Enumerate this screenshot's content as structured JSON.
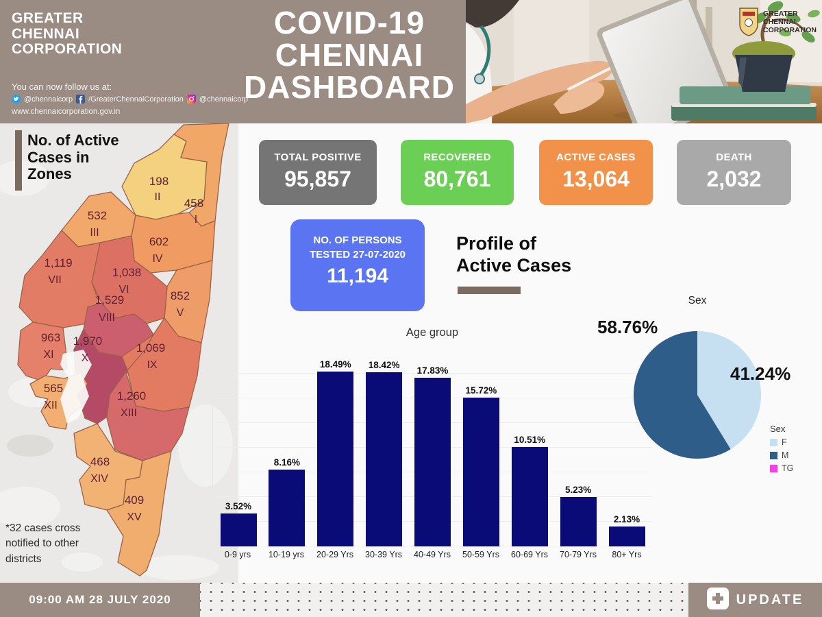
{
  "header": {
    "org_name": "GREATER\nCHENNAI\nCORPORATION",
    "follow_text": "You can now follow us at:",
    "social": {
      "twitter_handle": "@chennaicorp",
      "facebook_handle": "/GreaterChennaiCorporation",
      "instagram_handle": "@chennaicorp"
    },
    "website": "www.chennaicorporation.gov.in",
    "title": "COVID-19\nCHENNAI\nDASHBOARD",
    "logo_text": "GREATER\nCHENNAI\nCORPORATION"
  },
  "stats": [
    {
      "label": "TOTAL POSITIVE",
      "value": "95,857",
      "color": "#757575"
    },
    {
      "label": "RECOVERED",
      "value": "80,761",
      "color": "#6ccf55"
    },
    {
      "label": "ACTIVE CASES",
      "value": "13,064",
      "color": "#f1914a"
    },
    {
      "label": "DEATH",
      "value": "2,032",
      "color": "#a9a9a9"
    }
  ],
  "tested_card": {
    "label": "NO. OF PERSONS\nTESTED 27-07-2020",
    "value": "11,194",
    "color": "#5a74f2"
  },
  "profile_heading": "Profile of\nActive Cases",
  "map": {
    "title": "No. of Active\nCases in\nZones",
    "note": "*32 cases cross\nnotified to other\ndistricts",
    "zones": [
      {
        "roman": "II",
        "value": "198",
        "color": "#f3d17e"
      },
      {
        "roman": "I",
        "value": "458",
        "color": "#f1a768"
      },
      {
        "roman": "III",
        "value": "532",
        "color": "#f2a76b"
      },
      {
        "roman": "IV",
        "value": "602",
        "color": "#f09b62"
      },
      {
        "roman": "V",
        "value": "852",
        "color": "#ef9d68"
      },
      {
        "roman": "VI",
        "value": "1,038",
        "color": "#dc7163"
      },
      {
        "roman": "VII",
        "value": "1,119",
        "color": "#e27c64"
      },
      {
        "roman": "VIII",
        "value": "1,529",
        "color": "#cb5f6d"
      },
      {
        "roman": "IX",
        "value": "1,069",
        "color": "#e27b62"
      },
      {
        "roman": "X",
        "value": "1,970",
        "color": "#b54a67"
      },
      {
        "roman": "XI",
        "value": "963",
        "color": "#e5816a"
      },
      {
        "roman": "XII",
        "value": "565",
        "color": "#f3ae72"
      },
      {
        "roman": "XIII",
        "value": "1,260",
        "color": "#d66a6b"
      },
      {
        "roman": "XIV",
        "value": "468",
        "color": "#f2b274"
      },
      {
        "roman": "XV",
        "value": "409",
        "color": "#f0ad6d"
      }
    ]
  },
  "chart_data": [
    {
      "type": "bar",
      "title": "Age group",
      "categories": [
        "0-9 yrs",
        "10-19 yrs",
        "20-29 Yrs",
        "30-39 Yrs",
        "40-49 Yrs",
        "50-59 Yrs",
        "60-69 Yrs",
        "70-79 Yrs",
        "80+ Yrs"
      ],
      "values": [
        3.52,
        8.16,
        18.49,
        18.42,
        17.83,
        15.72,
        10.51,
        5.23,
        2.13
      ],
      "labels": [
        "3.52%",
        "8.16%",
        "18.49%",
        "18.42%",
        "17.83%",
        "15.72%",
        "10.51%",
        "5.23%",
        "2.13%"
      ],
      "bar_color": "#0b0b77",
      "xlabel": "",
      "ylabel": "",
      "ylim": [
        0,
        20
      ],
      "grid": true,
      "legend": false
    },
    {
      "type": "pie",
      "title": "Sex",
      "legend_title": "Sex",
      "legend_position": "right",
      "slices": [
        {
          "name": "F",
          "value": 41.24,
          "label": "41.24%",
          "color": "#c6dff1"
        },
        {
          "name": "M",
          "value": 58.76,
          "label": "58.76%",
          "color": "#2d5d88"
        },
        {
          "name": "TG",
          "value": 0,
          "label": "",
          "color": "#f243e1"
        }
      ]
    }
  ],
  "footer": {
    "timestamp": "09:00 AM 28 JULY 2020",
    "update_label": "UPDATE"
  }
}
